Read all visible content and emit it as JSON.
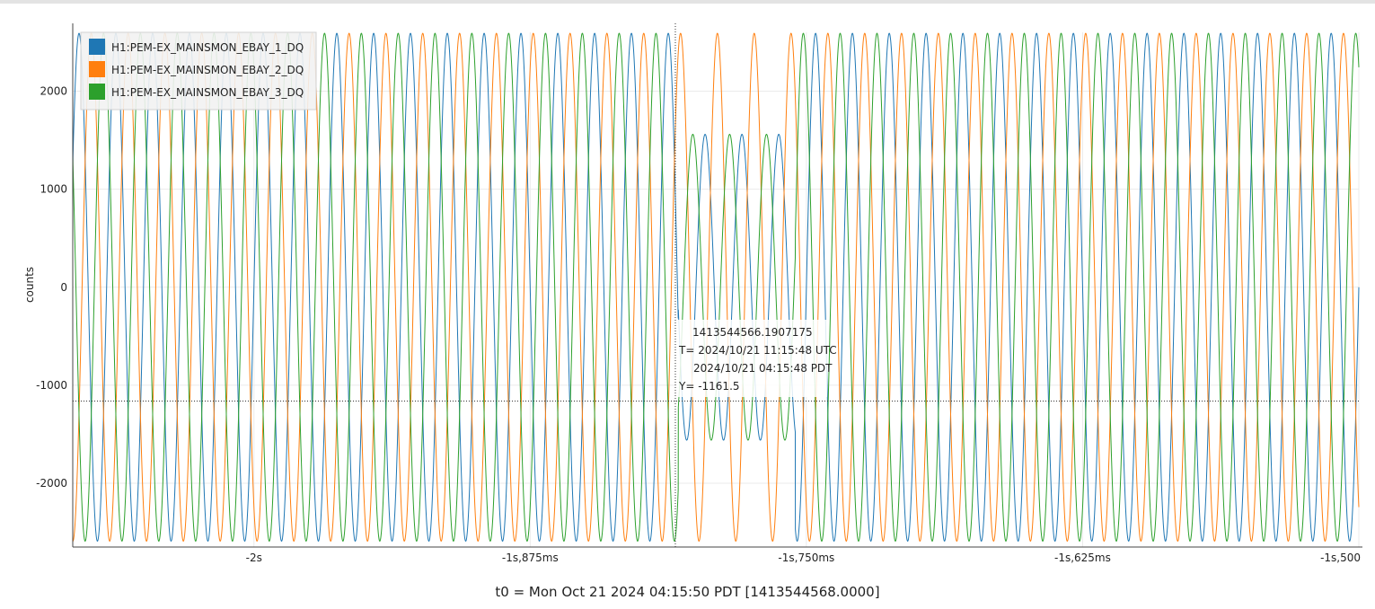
{
  "chart_data": {
    "type": "line",
    "ylabel": "counts",
    "xlabel": "t0 = Mon Oct 21 2024 04:15:50 PDT [1413544568.0000]",
    "x_range_s": [
      -2.082,
      -1.5
    ],
    "y_range": [
      -2650,
      2600
    ],
    "y_ticks": [
      -2000,
      -1000,
      0,
      1000,
      2000
    ],
    "y_tick_labels": [
      "-2000",
      "-1000",
      "0",
      "1000",
      "2000"
    ],
    "x_ticks_s": [
      -2.0,
      -1.875,
      -1.75,
      -1.625,
      -1.5
    ],
    "x_tick_labels": [
      "-2s",
      "-1s,875ms",
      "-1s,750ms",
      "-1s,625ms",
      "-1s,500"
    ],
    "grid": true,
    "legend_position": "top-left",
    "frequency_hz": 60,
    "normal_amplitude": 2590,
    "sag_amplitude": 1560,
    "sag_interval_s": [
      -1.808,
      -1.755
    ],
    "series": [
      {
        "name": "H1:PEM-EX_MAINSMON_EBAY_1_DQ",
        "color": "#1f77b4",
        "phase_deg": 0,
        "sag": true
      },
      {
        "name": "H1:PEM-EX_MAINSMON_EBAY_2_DQ",
        "color": "#ff7f0e",
        "phase_deg": -120,
        "sag": false
      },
      {
        "name": "H1:PEM-EX_MAINSMON_EBAY_3_DQ",
        "color": "#2ca02c",
        "phase_deg": 120,
        "sag": true
      }
    ],
    "crosshair": {
      "x_s": -1.8093,
      "y": -1161.5
    },
    "tooltip": {
      "gps": "1413544566.1907175",
      "utc": "T= 2024/10/21 11:15:48 UTC",
      "local": "2024/10/21 04:15:48 PDT",
      "y": "Y= -1161.5"
    }
  }
}
